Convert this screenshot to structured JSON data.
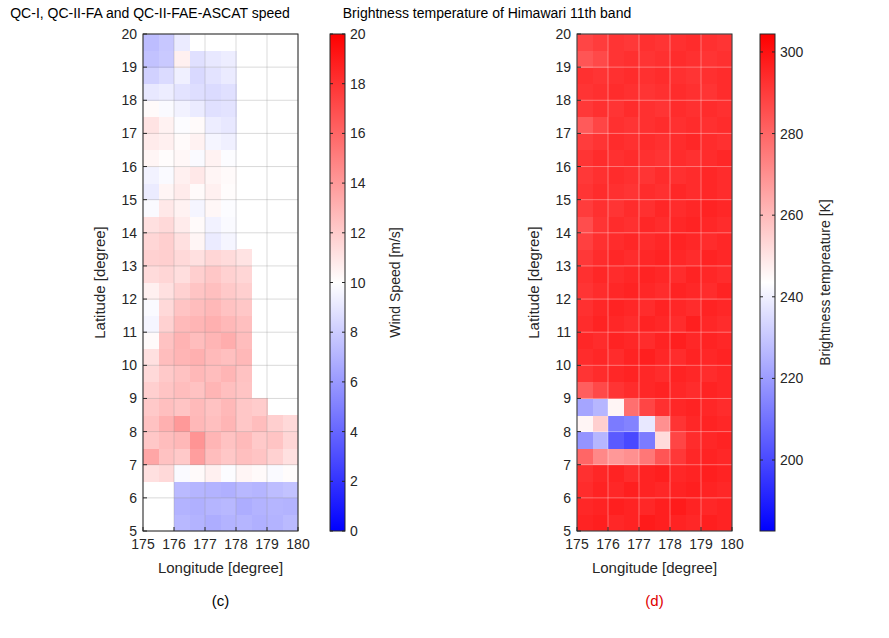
{
  "chart_data": [
    {
      "type": "heatmap",
      "title": "QC-I, QC-II-FA and QC-II-FAE-ASCAT speed",
      "panel_label": "(c)",
      "x_label": "Longitude [degree]",
      "y_label": "Latitude [degree]",
      "xlim": [
        175,
        180
      ],
      "ylim": [
        5,
        20
      ],
      "xticks": [
        175,
        176,
        177,
        178,
        179,
        180
      ],
      "yticks": [
        5,
        6,
        7,
        8,
        9,
        10,
        11,
        12,
        13,
        14,
        15,
        16,
        17,
        18,
        19,
        20
      ],
      "grid": true,
      "x": [
        175,
        175.5,
        176,
        176.5,
        177,
        177.5,
        178,
        178.5,
        179,
        179.5
      ],
      "y": [
        5,
        5.5,
        6,
        6.5,
        7,
        7.5,
        8,
        8.5,
        9,
        9.5,
        10,
        10.5,
        11,
        11.5,
        12,
        12.5,
        13,
        13.5,
        14,
        14.5,
        15,
        15.5,
        16,
        16.5,
        17,
        17.5,
        18,
        18.5,
        19,
        19.5
      ],
      "cells": [
        [
          null,
          null,
          7.2,
          7,
          6.8,
          7,
          7.1,
          6.9,
          7,
          7.3
        ],
        [
          null,
          null,
          7,
          6.9,
          7.1,
          7.2,
          6.8,
          7,
          7.1,
          7
        ],
        [
          null,
          null,
          7.3,
          7.1,
          7,
          6.9,
          7.2,
          7.1,
          7.4,
          7.6
        ],
        [
          11.2,
          11.5,
          9.8,
          10.2,
          10.6,
          9.9,
          10.4,
          10.2,
          9.8,
          10.1
        ],
        [
          13.5,
          12.4,
          12.1,
          13.8,
          12.6,
          12.2,
          12.5,
          12.3,
          11.8,
          11.2
        ],
        [
          12.2,
          12.6,
          12.8,
          14.2,
          12.9,
          12.4,
          12.7,
          12.1,
          12.3,
          11.6
        ],
        [
          12.4,
          13.1,
          14,
          12.8,
          12.5,
          12.9,
          12.2,
          12.6,
          11.9,
          11.5
        ],
        [
          12.1,
          12.5,
          12.3,
          12.7,
          12.4,
          12.8,
          12.2,
          12,
          null,
          null
        ],
        [
          11.9,
          12.3,
          12.6,
          12.4,
          12.9,
          12.5,
          12.3,
          null,
          null,
          null
        ],
        [
          11.5,
          12.1,
          12.4,
          12.8,
          12.6,
          12.9,
          12.4,
          null,
          null,
          null
        ],
        [
          11.2,
          12.6,
          12.9,
          13.1,
          12.7,
          12.5,
          12.8,
          null,
          null,
          null
        ],
        [
          10.2,
          12.4,
          13,
          12.6,
          12.9,
          13.2,
          12.6,
          null,
          null,
          null
        ],
        [
          9.6,
          11.8,
          12.7,
          12.9,
          13.1,
          12.8,
          12.5,
          null,
          null,
          null
        ],
        [
          9.8,
          11.5,
          12.3,
          12.6,
          12.8,
          12.4,
          12.2,
          null,
          null,
          null
        ],
        [
          10.6,
          11.2,
          11.8,
          12.3,
          12.5,
          12.1,
          11.9,
          null,
          null,
          null
        ],
        [
          11.4,
          11.6,
          11.3,
          11.9,
          12.2,
          11.8,
          11.6,
          null,
          null,
          null
        ],
        [
          11.8,
          11.9,
          11.5,
          11.2,
          11.6,
          11.4,
          11.1,
          null,
          null,
          null
        ],
        [
          11.6,
          11.9,
          11.2,
          10.4,
          9.2,
          9.6,
          null,
          null,
          null,
          null
        ],
        [
          11.2,
          11.5,
          10.8,
          10.2,
          9.5,
          9.8,
          null,
          null,
          null,
          null
        ],
        [
          9.8,
          10.9,
          10.5,
          9.6,
          10.3,
          9.9,
          null,
          null,
          null,
          null
        ],
        [
          9.2,
          10.4,
          10.8,
          10.2,
          10.6,
          10.1,
          null,
          null,
          null,
          null
        ],
        [
          9.5,
          9.8,
          10.6,
          10.9,
          10.4,
          10.2,
          null,
          null,
          null,
          null
        ],
        [
          10.4,
          10.1,
          10.3,
          9.8,
          10.5,
          9.9,
          null,
          null,
          null,
          null
        ],
        [
          10.8,
          10.6,
          10.2,
          10.5,
          9.6,
          9.4,
          null,
          null,
          null,
          null
        ],
        [
          11.1,
          10.5,
          9.9,
          10.2,
          9.3,
          9.1,
          null,
          null,
          null,
          null
        ],
        [
          10.2,
          9.8,
          9.5,
          9.2,
          8.8,
          8.9,
          null,
          null,
          null,
          null
        ],
        [
          9.1,
          9.3,
          8.9,
          8.7,
          8.6,
          8.8,
          null,
          null,
          null,
          null
        ],
        [
          8.2,
          8.6,
          9.4,
          8.5,
          8.9,
          9.2,
          null,
          null,
          null,
          null
        ],
        [
          7.6,
          7.9,
          10.6,
          8.8,
          9.1,
          9.3,
          null,
          null,
          null,
          null
        ],
        [
          7.4,
          7.8,
          9.2,
          null,
          null,
          null,
          null,
          null,
          null,
          null
        ]
      ],
      "colorbar": {
        "label": "Wind Speed [m/s]",
        "lim": [
          0,
          20
        ],
        "ticks": [
          0,
          2,
          4,
          6,
          8,
          10,
          12,
          14,
          16,
          18,
          20
        ]
      }
    },
    {
      "type": "heatmap",
      "title": "Brightness temperature of Himawari 11th band",
      "panel_label": "(d)",
      "x_label": "Longitude [degree]",
      "y_label": "Latitude [degree]",
      "xlim": [
        175,
        180
      ],
      "ylim": [
        5,
        20
      ],
      "xticks": [
        175,
        176,
        177,
        178,
        179,
        180
      ],
      "yticks": [
        5,
        6,
        7,
        8,
        9,
        10,
        11,
        12,
        13,
        14,
        15,
        16,
        17,
        18,
        19,
        20
      ],
      "grid": true,
      "x": [
        175,
        175.5,
        176,
        176.5,
        177,
        177.5,
        178,
        178.5,
        179,
        179.5
      ],
      "y": [
        5,
        5.5,
        6,
        6.5,
        7,
        7.5,
        8,
        8.5,
        9,
        9.5,
        10,
        10.5,
        11,
        11.5,
        12,
        12.5,
        13,
        13.5,
        14,
        14.5,
        15,
        15.5,
        16,
        16.5,
        17,
        17.5,
        18,
        18.5,
        19,
        19.5
      ],
      "cells": [
        [
          296,
          297,
          295,
          296,
          298,
          297,
          296,
          295,
          297,
          296
        ],
        [
          295,
          296,
          297,
          296,
          295,
          297,
          298,
          296,
          295,
          296
        ],
        [
          294,
          296,
          295,
          297,
          296,
          295,
          296,
          297,
          296,
          295
        ],
        [
          293,
          295,
          296,
          294,
          296,
          297,
          295,
          296,
          297,
          296
        ],
        [
          280,
          272,
          268,
          270,
          276,
          284,
          291,
          295,
          296,
          295
        ],
        [
          218,
          226,
          204,
          200,
          212,
          252,
          288,
          294,
          295,
          296
        ],
        [
          246,
          255,
          212,
          214,
          238,
          270,
          292,
          295,
          296,
          295
        ],
        [
          222,
          226,
          246,
          278,
          288,
          293,
          295,
          296,
          295,
          294
        ],
        [
          282,
          287,
          292,
          294,
          295,
          296,
          295,
          294,
          296,
          295
        ],
        [
          292,
          294,
          295,
          296,
          295,
          294,
          296,
          295,
          294,
          295
        ],
        [
          294,
          295,
          294,
          296,
          297,
          295,
          294,
          296,
          295,
          296
        ],
        [
          295,
          294,
          296,
          295,
          294,
          296,
          297,
          295,
          296,
          295
        ],
        [
          294,
          296,
          295,
          294,
          296,
          295,
          294,
          297,
          295,
          294
        ],
        [
          293,
          295,
          296,
          295,
          294,
          296,
          295,
          294,
          296,
          295
        ],
        [
          292,
          294,
          295,
          296,
          295,
          294,
          296,
          295,
          294,
          296
        ],
        [
          293,
          295,
          294,
          295,
          296,
          295,
          294,
          296,
          295,
          294
        ],
        [
          291,
          294,
          295,
          294,
          295,
          296,
          295,
          294,
          296,
          295
        ],
        [
          289,
          293,
          294,
          295,
          294,
          295,
          296,
          295,
          294,
          295
        ],
        [
          286,
          292,
          294,
          293,
          295,
          294,
          295,
          296,
          295,
          294
        ],
        [
          290,
          293,
          292,
          294,
          293,
          295,
          294,
          295,
          296,
          295
        ],
        [
          292,
          294,
          293,
          292,
          294,
          293,
          295,
          294,
          295,
          294
        ],
        [
          291,
          293,
          294,
          293,
          292,
          294,
          293,
          294,
          295,
          294
        ],
        [
          292,
          294,
          293,
          294,
          293,
          292,
          294,
          293,
          294,
          295
        ],
        [
          290,
          292,
          294,
          293,
          294,
          293,
          294,
          295,
          294,
          293
        ],
        [
          283,
          288,
          293,
          292,
          293,
          294,
          293,
          294,
          293,
          294
        ],
        [
          291,
          293,
          292,
          294,
          293,
          292,
          294,
          293,
          294,
          293
        ],
        [
          292,
          293,
          294,
          293,
          292,
          293,
          294,
          293,
          292,
          294
        ],
        [
          293,
          292,
          293,
          294,
          293,
          294,
          293,
          292,
          293,
          294
        ],
        [
          284,
          287,
          292,
          293,
          292,
          293,
          294,
          293,
          292,
          293
        ],
        [
          288,
          290,
          292,
          291,
          293,
          292,
          293,
          294,
          293,
          292
        ]
      ],
      "colorbar": {
        "label": "Brightness tempreature [K]",
        "lim": [
          182.6,
          304.4
        ],
        "ticks": [
          200,
          220,
          240,
          260,
          280,
          300
        ]
      }
    }
  ]
}
